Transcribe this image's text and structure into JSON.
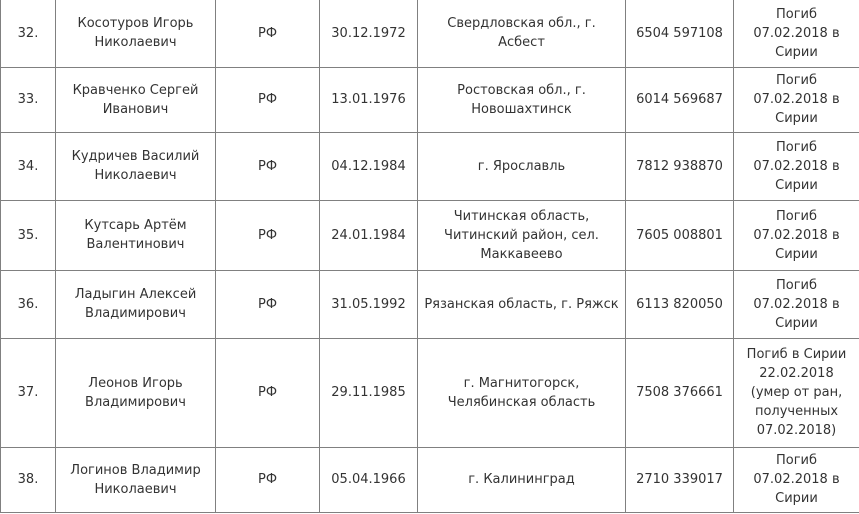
{
  "colors": {
    "border": "#808080",
    "text": "#333333",
    "background": "#ffffff"
  },
  "table": {
    "rows": [
      {
        "num": "32.",
        "name": "Косотуров Игорь\nНиколаевич",
        "citizenship": "РФ",
        "dob": "30.12.1972",
        "place": "Свердловская обл., г.\nАсбест",
        "passport": "6504 597108",
        "death": "Погиб\n07.02.2018 в\nСирии"
      },
      {
        "num": "33.",
        "name": "Кравченко Сергей\nИванович",
        "citizenship": "РФ",
        "dob": "13.01.1976",
        "place": "Ростовская обл., г.\nНовошахтинск",
        "passport": "6014 569687",
        "death": "Погиб\n07.02.2018 в\nСирии"
      },
      {
        "num": "34.",
        "name": "Кудричев Василий\nНиколаевич",
        "citizenship": "РФ",
        "dob": "04.12.1984",
        "place": "г. Ярославль",
        "passport": "7812 938870",
        "death": "Погиб\n07.02.2018 в\nСирии"
      },
      {
        "num": "35.",
        "name": "Кутсарь Артём\nВалентинович",
        "citizenship": "РФ",
        "dob": "24.01.1984",
        "place": "Читинская область,\nЧитинский район, сел.\nМаккавеево",
        "passport": "7605 008801",
        "death": "Погиб\n07.02.2018 в\nСирии"
      },
      {
        "num": "36.",
        "name": "Ладыгин Алексей\nВладимирович",
        "citizenship": "РФ",
        "dob": "31.05.1992",
        "place": "Рязанская область, г. Ряжск",
        "passport": "6113 820050",
        "death": "Погиб\n07.02.2018 в\nСирии"
      },
      {
        "num": "37.",
        "name": "Леонов Игорь\nВладимирович",
        "citizenship": "РФ",
        "dob": "29.11.1985",
        "place": "г. Магнитогорск,\nЧелябинская область",
        "passport": "7508 376661",
        "death": "Погиб в Сирии\n22.02.2018\n(умер от ран,\nполученных\n07.02.2018)"
      },
      {
        "num": "38.",
        "name": "Логинов Владимир\nНиколаевич",
        "citizenship": "РФ",
        "dob": "05.04.1966",
        "place": "г. Калининград",
        "passport": "2710 339017",
        "death": "Погиб\n07.02.2018 в\nСирии"
      }
    ]
  }
}
